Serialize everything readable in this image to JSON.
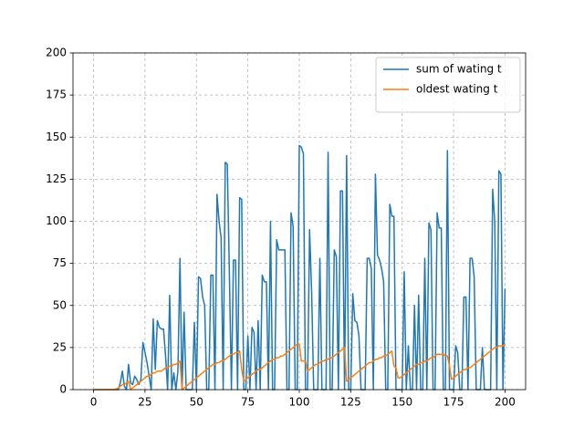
{
  "chart_data": {
    "type": "line",
    "x": [
      0,
      1,
      2,
      3,
      4,
      5,
      6,
      7,
      8,
      9,
      10,
      11,
      12,
      13,
      14,
      15,
      16,
      17,
      18,
      19,
      20,
      21,
      22,
      23,
      24,
      25,
      26,
      27,
      28,
      29,
      30,
      31,
      32,
      33,
      34,
      35,
      36,
      37,
      38,
      39,
      40,
      41,
      42,
      43,
      44,
      45,
      46,
      47,
      48,
      49,
      50,
      51,
      52,
      53,
      54,
      55,
      56,
      57,
      58,
      59,
      60,
      61,
      62,
      63,
      64,
      65,
      66,
      67,
      68,
      69,
      70,
      71,
      72,
      73,
      74,
      75,
      76,
      77,
      78,
      79,
      80,
      81,
      82,
      83,
      84,
      85,
      86,
      87,
      88,
      89,
      90,
      91,
      92,
      93,
      94,
      95,
      96,
      97,
      98,
      99,
      100,
      101,
      102,
      103,
      104,
      105,
      106,
      107,
      108,
      109,
      110,
      111,
      112,
      113,
      114,
      115,
      116,
      117,
      118,
      119,
      120,
      121,
      122,
      123,
      124,
      125,
      126,
      127,
      128,
      129,
      130,
      131,
      132,
      133,
      134,
      135,
      136,
      137,
      138,
      139,
      140,
      141,
      142,
      143,
      144,
      145,
      146,
      147,
      148,
      149,
      150,
      151,
      152,
      153,
      154,
      155,
      156,
      157,
      158,
      159,
      160,
      161,
      162,
      163,
      164,
      165,
      166,
      167,
      168,
      169,
      170,
      171,
      172,
      173,
      174,
      175,
      176,
      177,
      178,
      179,
      180,
      181,
      182,
      183,
      184,
      185,
      186,
      187,
      188,
      189,
      190,
      191,
      192,
      193,
      194,
      195,
      196,
      197,
      198,
      199,
      200
    ],
    "series": [
      {
        "name": "sum of wating t",
        "color": "#1f77b4",
        "values": [
          0,
          0,
          0,
          0,
          0,
          0,
          0,
          0,
          0,
          0,
          0,
          0,
          0,
          4,
          11,
          2,
          0,
          15,
          4,
          3,
          8,
          6,
          3,
          6,
          28,
          22,
          16,
          8,
          0,
          42,
          12,
          41,
          37,
          36,
          36,
          20,
          0,
          56,
          0,
          10,
          0,
          11,
          78,
          0,
          46,
          0,
          0,
          0,
          0,
          40,
          0,
          67,
          66,
          55,
          50,
          0,
          0,
          68,
          68,
          0,
          116,
          100,
          90,
          0,
          135,
          134,
          70,
          0,
          77,
          77,
          0,
          114,
          113,
          0,
          0,
          32,
          0,
          37,
          34,
          0,
          41,
          0,
          68,
          64,
          64,
          0,
          100,
          0,
          0,
          89,
          83,
          83,
          83,
          83,
          0,
          0,
          105,
          97,
          0,
          0,
          145,
          144,
          140,
          0,
          0,
          95,
          58,
          0,
          0,
          0,
          78,
          0,
          0,
          0,
          141,
          0,
          0,
          83,
          79,
          0,
          118,
          118,
          0,
          139,
          0,
          0,
          57,
          41,
          40,
          32,
          0,
          0,
          0,
          78,
          78,
          72,
          0,
          128,
          80,
          77,
          72,
          64,
          0,
          0,
          110,
          103,
          103,
          0,
          0,
          0,
          0,
          70,
          0,
          26,
          0,
          0,
          50,
          0,
          56,
          0,
          0,
          78,
          0,
          99,
          95,
          0,
          0,
          105,
          96,
          96,
          0,
          0,
          142,
          0,
          0,
          0,
          26,
          22,
          0,
          0,
          55,
          55,
          0,
          78,
          78,
          67,
          0,
          0,
          0,
          25,
          0,
          0,
          0,
          0,
          119,
          100,
          0,
          130,
          128,
          0,
          60
        ]
      },
      {
        "name": "oldest wating t",
        "color": "#ff7f0e",
        "values": [
          0,
          0,
          0,
          0,
          0,
          0,
          0,
          0,
          0,
          0,
          0,
          0.5,
          1,
          2,
          3,
          3,
          4,
          5,
          0,
          1,
          2,
          3,
          4,
          5,
          6,
          7,
          8,
          8,
          9,
          10,
          10,
          11,
          11,
          11,
          12,
          13,
          13,
          14,
          14,
          15,
          15,
          16,
          17,
          0,
          1,
          2,
          3,
          4,
          5,
          6,
          7,
          8,
          9,
          10,
          11,
          12,
          13,
          14,
          15,
          15,
          16,
          16,
          17,
          17,
          18,
          19,
          20,
          21,
          21,
          22,
          22,
          23,
          12,
          5,
          6,
          7,
          8,
          9,
          10,
          11,
          12,
          12,
          13,
          14,
          15,
          16,
          17,
          18,
          18,
          19,
          19,
          20,
          20,
          21,
          22,
          23,
          24,
          25,
          26,
          27,
          27,
          17,
          17,
          17,
          11,
          12,
          13,
          14,
          15,
          15,
          16,
          17,
          17,
          18,
          18,
          19,
          19,
          20,
          21,
          22,
          23,
          24,
          25,
          5,
          6,
          7,
          8,
          9,
          10,
          11,
          12,
          13,
          14,
          15,
          16,
          16,
          17,
          18,
          18,
          19,
          19,
          20,
          20,
          21,
          22,
          23,
          14,
          13,
          7,
          7,
          8,
          9,
          10,
          11,
          12,
          13,
          14,
          15,
          15,
          16,
          16,
          17,
          17,
          18,
          19,
          19,
          20,
          21,
          21,
          21,
          21,
          20,
          20,
          14,
          6,
          7,
          8,
          9,
          10,
          11,
          12,
          12,
          13,
          13,
          14,
          15,
          16,
          17,
          18,
          19,
          20,
          21,
          22,
          23,
          24,
          25,
          25,
          26,
          26,
          26,
          27
        ]
      }
    ],
    "xlim": [
      -10,
      210
    ],
    "ylim": [
      0,
      200
    ],
    "xticks": [
      0,
      25,
      50,
      75,
      100,
      125,
      150,
      175,
      200
    ],
    "yticks": [
      0,
      25,
      50,
      75,
      100,
      125,
      150,
      175,
      200
    ],
    "grid": true,
    "legend": "upper right"
  }
}
